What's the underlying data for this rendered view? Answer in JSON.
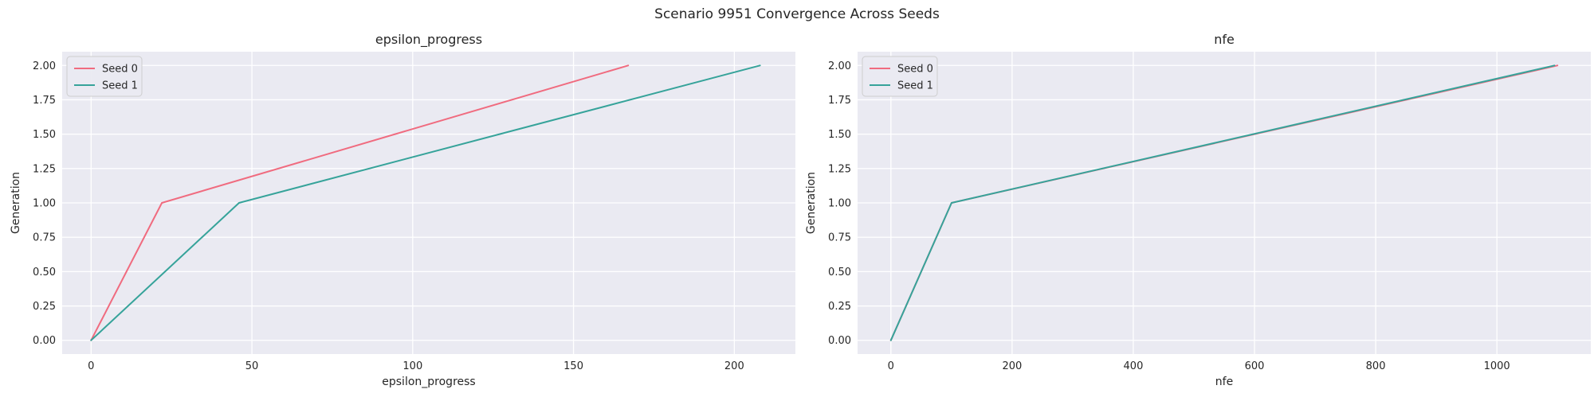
{
  "figure": {
    "suptitle": "Scenario 9951 Convergence Across Seeds"
  },
  "colors": {
    "seed0": "#f06b7f",
    "seed1": "#36a39a",
    "background": "#eaeaf2",
    "grid": "#ffffff"
  },
  "chart_data": [
    {
      "type": "line",
      "title": "epsilon_progress",
      "xlabel": "epsilon_progress",
      "ylabel": "Generation",
      "xlim": [
        -9,
        219
      ],
      "ylim": [
        -0.1,
        2.1
      ],
      "xticks": [
        0,
        50,
        100,
        150,
        200
      ],
      "xtick_labels": [
        "0",
        "50",
        "100",
        "150",
        "200"
      ],
      "yticks": [
        0,
        0.25,
        0.5,
        0.75,
        1.0,
        1.25,
        1.5,
        1.75,
        2.0
      ],
      "ytick_labels": [
        "0.00",
        "0.25",
        "0.50",
        "0.75",
        "1.00",
        "1.25",
        "1.50",
        "1.75",
        "2.00"
      ],
      "grid": true,
      "legend": "top-left",
      "series": [
        {
          "name": "Seed 0",
          "color": "#f06b7f",
          "x": [
            0,
            22,
            167
          ],
          "y": [
            0,
            1,
            2
          ]
        },
        {
          "name": "Seed 1",
          "color": "#36a39a",
          "x": [
            0,
            46,
            208
          ],
          "y": [
            0,
            1,
            2
          ]
        }
      ]
    },
    {
      "type": "line",
      "title": "nfe",
      "xlabel": "nfe",
      "ylabel": "Generation",
      "xlim": [
        -55,
        1155
      ],
      "ylim": [
        -0.1,
        2.1
      ],
      "xticks": [
        0,
        200,
        400,
        600,
        800,
        1000
      ],
      "xtick_labels": [
        "0",
        "200",
        "400",
        "600",
        "800",
        "1000"
      ],
      "yticks": [
        0,
        0.25,
        0.5,
        0.75,
        1.0,
        1.25,
        1.5,
        1.75,
        2.0
      ],
      "ytick_labels": [
        "0.00",
        "0.25",
        "0.50",
        "0.75",
        "1.00",
        "1.25",
        "1.50",
        "1.75",
        "2.00"
      ],
      "grid": true,
      "legend": "top-left",
      "series": [
        {
          "name": "Seed 0",
          "color": "#f06b7f",
          "x": [
            0,
            100,
            1100
          ],
          "y": [
            0,
            1,
            2
          ]
        },
        {
          "name": "Seed 1",
          "color": "#36a39a",
          "x": [
            0,
            100,
            1095
          ],
          "y": [
            0,
            1,
            2
          ]
        }
      ]
    }
  ]
}
